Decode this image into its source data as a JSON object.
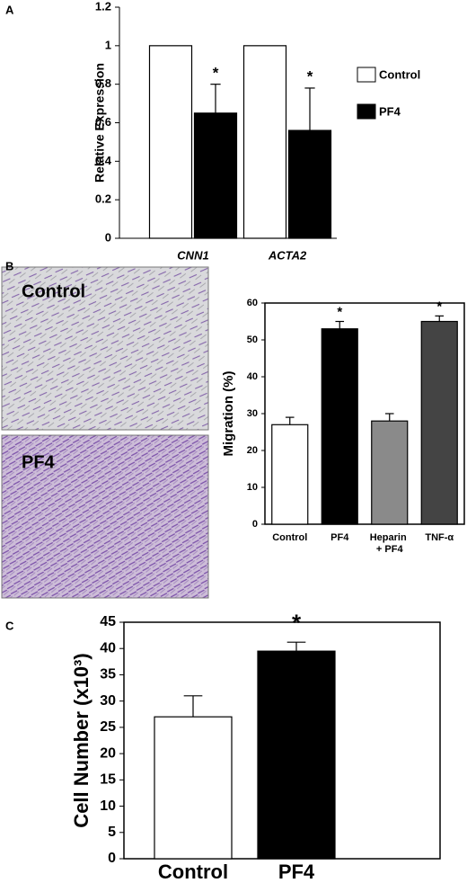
{
  "chart_data": [
    {
      "type": "bar",
      "panel_label": "A",
      "ylabel": "Relative Expression",
      "categories": [
        "CNN1",
        "ACTA2"
      ],
      "series": [
        {
          "name": "Control",
          "color": "#ffffff",
          "values": [
            1,
            1
          ]
        },
        {
          "name": "PF4",
          "color": "#000000",
          "values": [
            0.65,
            0.56
          ],
          "errors": [
            0.15,
            0.22
          ],
          "annotations": [
            "*",
            "*"
          ]
        }
      ],
      "ylim": [
        0,
        1.2
      ],
      "yticks": [
        0,
        0.2,
        0.4,
        0.6,
        0.8,
        1,
        1.2
      ],
      "legend": "right"
    },
    {
      "type": "bar",
      "panel_label": "B",
      "images": [
        "Control",
        "PF4"
      ],
      "ylabel": "Migration (%)",
      "categories": [
        "Control",
        "PF4",
        "Heparin + PF4",
        "TNF-α"
      ],
      "values": [
        27,
        53,
        28,
        55
      ],
      "errors": [
        2,
        2,
        2,
        1.5
      ],
      "colors": [
        "#ffffff",
        "#000000",
        "#8a8a8a",
        "#444444"
      ],
      "annotations": [
        null,
        "*",
        null,
        "*"
      ],
      "ylim": [
        0,
        60
      ],
      "yticks": [
        0,
        10,
        20,
        30,
        40,
        50,
        60
      ]
    },
    {
      "type": "bar",
      "panel_label": "C",
      "ylabel": "Cell Number (x10³)",
      "categories": [
        "Control",
        "PF4"
      ],
      "values": [
        27,
        39.5
      ],
      "errors": [
        4,
        1.7
      ],
      "colors": [
        "#ffffff",
        "#000000"
      ],
      "annotations": [
        null,
        "*"
      ],
      "ylim": [
        0,
        45
      ],
      "yticks": [
        0,
        5,
        10,
        15,
        20,
        25,
        30,
        35,
        40,
        45
      ]
    }
  ]
}
